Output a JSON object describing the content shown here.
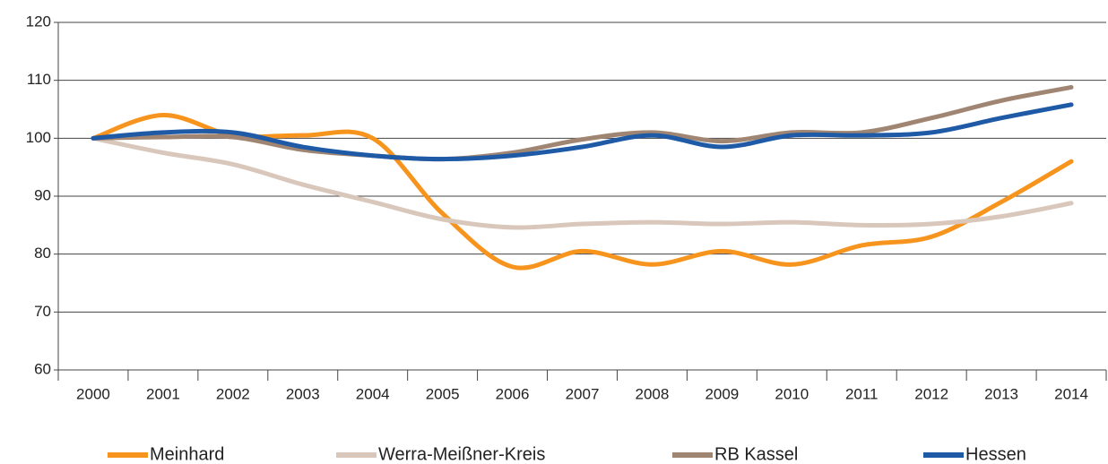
{
  "chart_data": {
    "type": "line",
    "categories": [
      "2000",
      "2001",
      "2002",
      "2003",
      "2004",
      "2005",
      "2006",
      "2007",
      "2008",
      "2009",
      "2010",
      "2011",
      "2012",
      "2013",
      "2014"
    ],
    "series": [
      {
        "name": "Meinhard",
        "color": "#f7941d",
        "values": [
          100,
          104,
          100.5,
          100.5,
          100,
          87,
          77.8,
          80.5,
          78.2,
          80.5,
          78.2,
          81.5,
          83,
          89,
          96
        ]
      },
      {
        "name": "Werra-Meißner-Kreis",
        "color": "#d8c7ba",
        "values": [
          100,
          97.5,
          95.5,
          92,
          89,
          86,
          84.6,
          85.2,
          85.5,
          85.2,
          85.5,
          85,
          85.2,
          86.5,
          88.8
        ]
      },
      {
        "name": "RB Kassel",
        "color": "#a08672",
        "values": [
          100,
          100.2,
          100.2,
          98,
          97,
          96.4,
          97.5,
          99.8,
          101,
          99.5,
          101,
          101,
          103.5,
          106.5,
          108.8
        ]
      },
      {
        "name": "Hessen",
        "color": "#1f5aa6",
        "values": [
          100,
          101,
          101,
          98.5,
          97,
          96.4,
          97,
          98.5,
          100.5,
          98.5,
          100.5,
          100.5,
          101,
          103.5,
          105.8
        ]
      }
    ],
    "ylim": [
      60,
      120
    ],
    "yticks": [
      60,
      70,
      80,
      90,
      100,
      110,
      120
    ],
    "grid": true,
    "legend": "bottom"
  }
}
